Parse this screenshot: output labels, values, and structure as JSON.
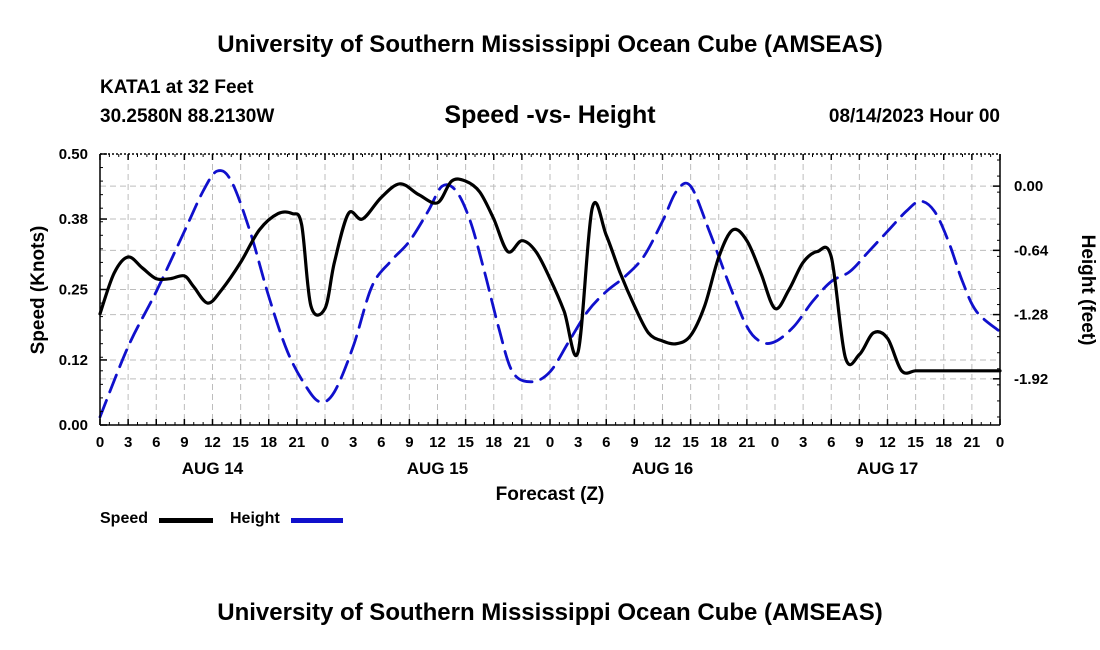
{
  "page": {
    "title": "University of Southern Mississippi Ocean Cube (AMSEAS)",
    "footer_title": "University of Southern Mississippi Ocean Cube (AMSEAS)",
    "station": "KATA1 at 32 Feet",
    "coords": "30.2580N  88.2130W",
    "datetime": "08/14/2023 Hour 00"
  },
  "chart_data": {
    "type": "line",
    "title": "Speed -vs- Height",
    "xlabel": "Forecast (Z)",
    "ylabel": "Speed (Knots)",
    "y2label": "Height (feet)",
    "ylim": [
      0,
      0.5
    ],
    "y2lim": [
      -2.38,
      0.32
    ],
    "xlim": [
      0,
      96
    ],
    "yticks": [
      0,
      0.12,
      0.25,
      0.38,
      0.5
    ],
    "ytick_labels": [
      "0.00",
      "0.12",
      "0.25",
      "0.38",
      "0.50"
    ],
    "y2ticks": [
      0,
      -0.64,
      -1.28,
      -1.92
    ],
    "y2tick_labels": [
      "0.00",
      "-0.64",
      "-1.28",
      "-1.92"
    ],
    "xticks": [
      0,
      3,
      6,
      9,
      12,
      15,
      18,
      21,
      24,
      27,
      30,
      33,
      36,
      39,
      42,
      45,
      48,
      51,
      54,
      57,
      60,
      63,
      66,
      69,
      72,
      75,
      78,
      81,
      84,
      87,
      90,
      93,
      96
    ],
    "xtick_labels": [
      "0",
      "3",
      "6",
      "9",
      "12",
      "15",
      "18",
      "21",
      "0",
      "3",
      "6",
      "9",
      "12",
      "15",
      "18",
      "21",
      "0",
      "3",
      "6",
      "9",
      "12",
      "15",
      "18",
      "21",
      "0",
      "3",
      "6",
      "9",
      "12",
      "15",
      "18",
      "21",
      "0"
    ],
    "date_labels": [
      {
        "label": "AUG 14",
        "x": 12
      },
      {
        "label": "AUG 15",
        "x": 36
      },
      {
        "label": "AUG 16",
        "x": 60
      },
      {
        "label": "AUG 17",
        "x": 84
      }
    ],
    "legend": [
      {
        "name": "Speed",
        "color": "#000000",
        "style": "solid"
      },
      {
        "name": "Height",
        "color": "#1010cc",
        "style": "dashed"
      }
    ],
    "series": [
      {
        "name": "Speed",
        "axis": "left",
        "color": "#000000",
        "x": [
          0,
          1.5,
          3,
          4.5,
          6,
          7.5,
          9,
          10,
          11.5,
          13,
          15,
          17,
          19,
          20.5,
          21.5,
          22.5,
          24,
          25,
          26.5,
          28,
          30,
          32,
          34,
          36,
          37.5,
          39,
          40.5,
          42,
          43.5,
          45,
          46.5,
          48,
          49.5,
          51,
          52.5,
          54,
          55.5,
          57,
          58.5,
          60,
          61.5,
          63,
          64.5,
          66,
          67.5,
          69,
          70.5,
          72,
          73.5,
          75,
          76.5,
          78,
          79.5,
          81,
          82.5,
          84,
          85.5,
          87,
          88.5,
          90,
          91.5,
          93,
          94.5,
          96
        ],
        "values": [
          0.205,
          0.28,
          0.31,
          0.29,
          0.27,
          0.27,
          0.275,
          0.255,
          0.225,
          0.25,
          0.3,
          0.36,
          0.39,
          0.39,
          0.37,
          0.22,
          0.215,
          0.3,
          0.39,
          0.38,
          0.42,
          0.445,
          0.425,
          0.41,
          0.45,
          0.45,
          0.43,
          0.38,
          0.32,
          0.34,
          0.32,
          0.27,
          0.21,
          0.135,
          0.4,
          0.35,
          0.28,
          0.22,
          0.17,
          0.155,
          0.15,
          0.165,
          0.22,
          0.31,
          0.36,
          0.34,
          0.28,
          0.215,
          0.25,
          0.3,
          0.32,
          0.31,
          0.125,
          0.13,
          0.17,
          0.16,
          0.1,
          0.1,
          0.1,
          0.1,
          0.1,
          0.1,
          0.1,
          0.1
        ]
      },
      {
        "name": "Height",
        "axis": "right",
        "color": "#1010cc",
        "x": [
          0,
          3,
          6,
          9,
          11,
          12.5,
          14,
          16,
          18,
          20,
          22,
          23.5,
          25,
          27,
          29,
          31,
          33,
          35,
          36.5,
          38,
          39.5,
          41,
          42.5,
          44,
          46,
          48,
          50,
          52,
          54,
          56,
          58,
          60,
          61.5,
          63,
          65,
          67,
          69,
          70.5,
          72,
          74,
          76,
          78,
          80,
          82,
          84,
          86,
          87.5,
          89,
          90.5,
          92,
          93.5,
          96
        ],
        "values": [
          -2.3,
          -1.6,
          -1.05,
          -0.45,
          -0.05,
          0.15,
          0.05,
          -0.45,
          -1.1,
          -1.65,
          -2.0,
          -2.15,
          -2.05,
          -1.6,
          -1.0,
          -0.75,
          -0.55,
          -0.25,
          0.0,
          -0.05,
          -0.35,
          -0.85,
          -1.4,
          -1.85,
          -1.95,
          -1.85,
          -1.55,
          -1.25,
          -1.05,
          -0.9,
          -0.7,
          -0.35,
          -0.05,
          0.0,
          -0.45,
          -0.95,
          -1.4,
          -1.55,
          -1.55,
          -1.4,
          -1.15,
          -0.95,
          -0.85,
          -0.65,
          -0.45,
          -0.25,
          -0.15,
          -0.25,
          -0.55,
          -0.95,
          -1.25,
          -1.45
        ]
      }
    ]
  }
}
